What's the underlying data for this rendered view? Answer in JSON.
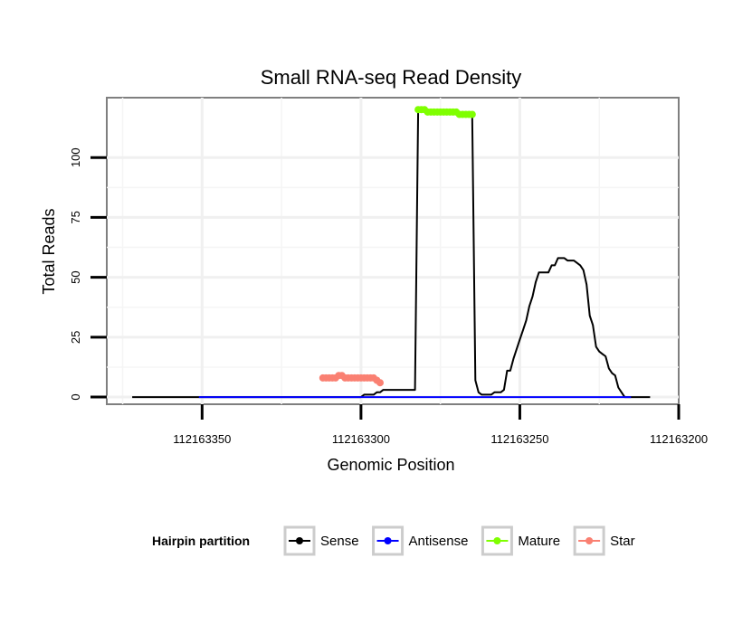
{
  "chart_data": {
    "type": "line",
    "title": "Small RNA-seq Read Density",
    "xlabel": "Genomic Position",
    "ylabel": "Total Reads",
    "xlim": [
      112163380,
      112163200
    ],
    "ylim": [
      -3,
      125
    ],
    "x_reversed": true,
    "xticks": [
      112163350,
      112163300,
      112163250,
      112163200
    ],
    "xtick_labels": [
      "112163350",
      "112163300",
      "112163250",
      "112163200"
    ],
    "yticks": [
      0,
      25,
      50,
      75,
      100
    ],
    "ytick_labels": [
      "0",
      "25",
      "50",
      "75",
      "100"
    ],
    "grid": true,
    "legend": {
      "title": "Hairpin partition",
      "position": "bottom",
      "entries": [
        {
          "name": "Sense",
          "color": "#000000"
        },
        {
          "name": "Antisense",
          "color": "#0000ff"
        },
        {
          "name": "Mature",
          "color": "#7fff00"
        },
        {
          "name": "Star",
          "color": "#fa8072"
        }
      ]
    },
    "series": [
      {
        "name": "Sense",
        "color": "#000000",
        "markers": false,
        "points": [
          [
            112163372,
            0
          ],
          [
            112163301,
            0
          ],
          [
            112163300,
            0
          ],
          [
            112163299,
            1
          ],
          [
            112163298,
            1
          ],
          [
            112163297,
            1
          ],
          [
            112163296,
            1
          ],
          [
            112163295,
            2
          ],
          [
            112163294,
            2
          ],
          [
            112163293,
            3
          ],
          [
            112163292,
            3
          ],
          [
            112163291,
            3
          ],
          [
            112163290,
            3
          ],
          [
            112163289,
            3
          ],
          [
            112163288,
            3
          ],
          [
            112163287,
            3
          ],
          [
            112163286,
            3
          ],
          [
            112163285,
            3
          ],
          [
            112163284,
            3
          ],
          [
            112163283,
            3
          ],
          [
            112163282,
            120
          ],
          [
            112163281,
            120
          ],
          [
            112163280,
            120
          ],
          [
            112163279,
            119
          ],
          [
            112163278,
            119
          ],
          [
            112163277,
            119
          ],
          [
            112163276,
            119
          ],
          [
            112163275,
            119
          ],
          [
            112163274,
            119
          ],
          [
            112163273,
            119
          ],
          [
            112163272,
            119
          ],
          [
            112163271,
            119
          ],
          [
            112163270,
            119
          ],
          [
            112163269,
            118
          ],
          [
            112163268,
            118
          ],
          [
            112163267,
            118
          ],
          [
            112163266,
            118
          ],
          [
            112163265,
            118
          ],
          [
            112163264,
            7
          ],
          [
            112163263,
            2
          ],
          [
            112163262,
            1
          ],
          [
            112163261,
            1
          ],
          [
            112163260,
            1
          ],
          [
            112163259,
            1
          ],
          [
            112163258,
            2
          ],
          [
            112163257,
            2
          ],
          [
            112163256,
            2
          ],
          [
            112163255,
            3
          ],
          [
            112163254,
            11
          ],
          [
            112163253,
            11
          ],
          [
            112163252,
            16
          ],
          [
            112163251,
            20
          ],
          [
            112163250,
            24
          ],
          [
            112163249,
            28
          ],
          [
            112163248,
            32
          ],
          [
            112163247,
            38
          ],
          [
            112163246,
            42
          ],
          [
            112163245,
            48
          ],
          [
            112163244,
            52
          ],
          [
            112163243,
            52
          ],
          [
            112163242,
            52
          ],
          [
            112163241,
            52
          ],
          [
            112163240,
            55
          ],
          [
            112163239,
            55
          ],
          [
            112163238,
            58
          ],
          [
            112163237,
            58
          ],
          [
            112163236,
            58
          ],
          [
            112163235,
            57
          ],
          [
            112163234,
            57
          ],
          [
            112163233,
            57
          ],
          [
            112163232,
            56
          ],
          [
            112163231,
            55
          ],
          [
            112163230,
            53
          ],
          [
            112163229,
            47
          ],
          [
            112163228,
            34
          ],
          [
            112163227,
            30
          ],
          [
            112163226,
            21
          ],
          [
            112163225,
            19
          ],
          [
            112163224,
            18
          ],
          [
            112163223,
            17
          ],
          [
            112163222,
            12
          ],
          [
            112163221,
            10
          ],
          [
            112163220,
            9
          ],
          [
            112163219,
            4
          ],
          [
            112163218,
            2
          ],
          [
            112163217,
            0
          ],
          [
            112163209,
            0
          ]
        ]
      },
      {
        "name": "Antisense",
        "color": "#0000ff",
        "markers": false,
        "points": [
          [
            112163351,
            0
          ],
          [
            112163215,
            0
          ]
        ]
      },
      {
        "name": "Mature",
        "color": "#7fff00",
        "markers": true,
        "points": [
          [
            112163282,
            120
          ],
          [
            112163281,
            120
          ],
          [
            112163280,
            120
          ],
          [
            112163279,
            119
          ],
          [
            112163278,
            119
          ],
          [
            112163277,
            119
          ],
          [
            112163276,
            119
          ],
          [
            112163275,
            119
          ],
          [
            112163274,
            119
          ],
          [
            112163273,
            119
          ],
          [
            112163272,
            119
          ],
          [
            112163271,
            119
          ],
          [
            112163270,
            119
          ],
          [
            112163269,
            118
          ],
          [
            112163268,
            118
          ],
          [
            112163267,
            118
          ],
          [
            112163266,
            118
          ],
          [
            112163265,
            118
          ]
        ]
      },
      {
        "name": "Star",
        "color": "#fa8072",
        "markers": true,
        "points": [
          [
            112163312,
            8
          ],
          [
            112163311,
            8
          ],
          [
            112163310,
            8
          ],
          [
            112163309,
            8
          ],
          [
            112163308,
            8
          ],
          [
            112163307,
            9
          ],
          [
            112163306,
            9
          ],
          [
            112163305,
            8
          ],
          [
            112163304,
            8
          ],
          [
            112163303,
            8
          ],
          [
            112163302,
            8
          ],
          [
            112163301,
            8
          ],
          [
            112163300,
            8
          ],
          [
            112163299,
            8
          ],
          [
            112163298,
            8
          ],
          [
            112163297,
            8
          ],
          [
            112163296,
            8
          ],
          [
            112163295,
            7
          ],
          [
            112163294,
            6
          ]
        ]
      }
    ]
  }
}
